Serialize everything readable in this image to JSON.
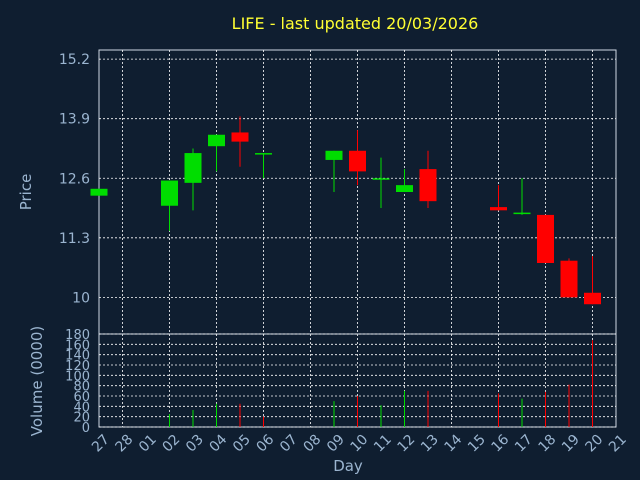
{
  "title": "LIFE - last updated 20/03/2026",
  "colors": {
    "background": "#0f1e30",
    "up": "#00dd00",
    "down": "#ff0000",
    "grid": "#ffffff",
    "text": "#9bb5d0",
    "title": "#ffff33"
  },
  "chart_data": [
    {
      "type": "candlestick",
      "title": "LIFE - last updated 20/03/2026",
      "xlabel": "Day",
      "ylabel": "Price",
      "ylim": [
        9.2,
        15.4
      ],
      "yticks": [
        "15.2",
        "13.9",
        "12.6",
        "11.3",
        "10"
      ],
      "grid": true,
      "x": [
        "27",
        "28",
        "01",
        "02",
        "03",
        "04",
        "05",
        "06",
        "07",
        "08",
        "09",
        "10",
        "11",
        "12",
        "13",
        "14",
        "15",
        "16",
        "17",
        "18",
        "19",
        "20",
        "21"
      ],
      "candles": [
        {
          "x": "27",
          "open": 12.22,
          "close": 12.37,
          "high": 12.37,
          "low": 12.22
        },
        {
          "x": "02",
          "open": 12.0,
          "close": 12.55,
          "high": 12.55,
          "low": 11.45
        },
        {
          "x": "03",
          "open": 12.5,
          "close": 13.15,
          "high": 13.25,
          "low": 11.9
        },
        {
          "x": "04",
          "open": 13.3,
          "close": 13.55,
          "high": 13.55,
          "low": 12.75
        },
        {
          "x": "05",
          "open": 13.6,
          "close": 13.4,
          "high": 13.95,
          "low": 12.85
        },
        {
          "x": "06",
          "open": 13.15,
          "close": 13.15,
          "high": 13.15,
          "low": 12.6
        },
        {
          "x": "09",
          "open": 13.0,
          "close": 13.2,
          "high": 13.2,
          "low": 12.3
        },
        {
          "x": "10",
          "open": 13.2,
          "close": 12.75,
          "high": 13.65,
          "low": 12.45
        },
        {
          "x": "11",
          "open": 12.6,
          "close": 12.6,
          "high": 13.05,
          "low": 11.95
        },
        {
          "x": "12",
          "open": 12.3,
          "close": 12.45,
          "high": 12.8,
          "low": 12.3
        },
        {
          "x": "13",
          "open": 12.8,
          "close": 12.1,
          "high": 13.2,
          "low": 11.95
        },
        {
          "x": "16",
          "open": 11.97,
          "close": 11.9,
          "high": 12.45,
          "low": 11.9
        },
        {
          "x": "17",
          "open": 11.85,
          "close": 11.85,
          "high": 12.6,
          "low": 11.8
        },
        {
          "x": "18",
          "open": 11.8,
          "close": 10.75,
          "high": 11.8,
          "low": 10.75
        },
        {
          "x": "19",
          "open": 10.8,
          "close": 10.0,
          "high": 10.85,
          "low": 10.0
        },
        {
          "x": "20",
          "open": 10.1,
          "close": 9.85,
          "high": 10.9,
          "low": 9.85
        }
      ]
    },
    {
      "type": "bar",
      "xlabel": "Day",
      "ylabel": "Volume (0000)",
      "ylim": [
        0,
        180
      ],
      "yticks": [
        "180",
        "160",
        "140",
        "120",
        "100",
        "80",
        "60",
        "40",
        "20",
        "0"
      ],
      "grid": true,
      "bars": [
        {
          "x": "27",
          "value": 0,
          "dir": "up"
        },
        {
          "x": "02",
          "value": 25,
          "dir": "up"
        },
        {
          "x": "03",
          "value": 33,
          "dir": "up"
        },
        {
          "x": "04",
          "value": 45,
          "dir": "up"
        },
        {
          "x": "05",
          "value": 45,
          "dir": "down"
        },
        {
          "x": "06",
          "value": 20,
          "dir": "down"
        },
        {
          "x": "09",
          "value": 50,
          "dir": "up"
        },
        {
          "x": "10",
          "value": 60,
          "dir": "down"
        },
        {
          "x": "11",
          "value": 42,
          "dir": "up"
        },
        {
          "x": "12",
          "value": 70,
          "dir": "up"
        },
        {
          "x": "13",
          "value": 70,
          "dir": "down"
        },
        {
          "x": "16",
          "value": 65,
          "dir": "down"
        },
        {
          "x": "17",
          "value": 55,
          "dir": "up"
        },
        {
          "x": "18",
          "value": 68,
          "dir": "down"
        },
        {
          "x": "19",
          "value": 82,
          "dir": "down"
        },
        {
          "x": "20",
          "value": 168,
          "dir": "down"
        }
      ]
    }
  ]
}
